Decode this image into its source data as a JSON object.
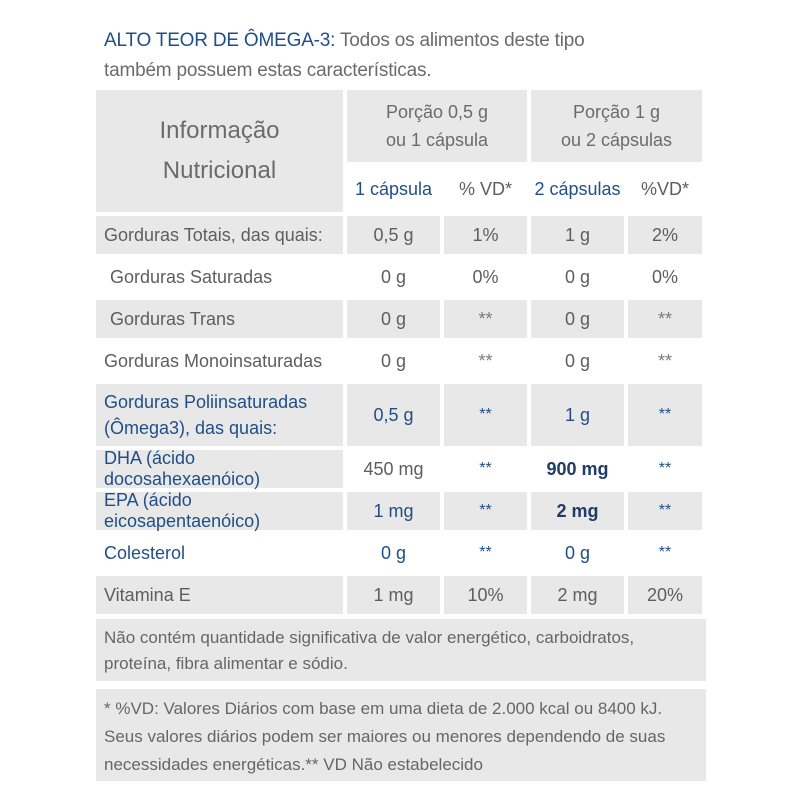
{
  "intro": {
    "highlight": "ALTO TEOR DE ÔMEGA-3:",
    "line1_rest": " Todos os alimentos deste tipo",
    "line2": "também possuem estas características."
  },
  "header": {
    "info_line1": "Informação",
    "info_line2": "Nutricional",
    "portion1_line1": "Porção 0,5 g",
    "portion1_line2": "ou 1 cápsula",
    "portion2_line1": "Porção  1 g",
    "portion2_line2": "ou 2 cápsulas",
    "sub1": "1 cápsula",
    "sub2": "% VD*",
    "sub3": "2 cápsulas",
    "sub4": "%VD*"
  },
  "rows": [
    {
      "label": "Gorduras Totais, das quais:",
      "v1": "0,5 g",
      "vd1": "1%",
      "v2": "1 g",
      "vd2": "2%"
    },
    {
      "label": " Gorduras Saturadas",
      "v1": "0 g",
      "vd1": "0%",
      "v2": "0 g",
      "vd2": "0%"
    },
    {
      "label": " Gorduras Trans",
      "v1": "0 g",
      "vd1": "**",
      "v2": "0 g",
      "vd2": "**"
    },
    {
      "label": "Gorduras Monoinsaturadas",
      "v1": "0 g",
      "vd1": "**",
      "v2": "0 g",
      "vd2": "**"
    },
    {
      "label_line1": "Gorduras Poliinsaturadas",
      "label_line2": "(Ômega3), das quais:",
      "v1": "0,5 g",
      "vd1": "**",
      "v2": "1 g",
      "vd2": "**"
    },
    {
      "label": "DHA (ácido docosahexaenóico)",
      "v1": "450 mg",
      "vd1": "**",
      "v2": "900 mg",
      "vd2": "**"
    },
    {
      "label": "EPA (ácido eicosapentaenóico)",
      "v1": "1 mg",
      "vd1": "**",
      "v2": "2 mg",
      "vd2": "**"
    },
    {
      "label": "Colesterol",
      "v1": "0 g",
      "vd1": "**",
      "v2": "0 g",
      "vd2": "**"
    },
    {
      "label": "Vitamina E",
      "v1": "1 mg",
      "vd1": "10%",
      "v2": "2 mg",
      "vd2": "20%"
    }
  ],
  "notes": {
    "note1_line1": "Não contém quantidade significativa de valor energético, carboidratos,",
    "note1_line2": "proteína, fibra alimentar e sódio.",
    "note2_line1": "* %VD: Valores Diários com base em uma dieta de 2.000 kcal ou 8400 kJ.",
    "note2_line2": "Seus valores diários podem ser maiores ou menores dependendo de suas",
    "note2_line3": "necessidades energéticas.** VD Não estabelecido"
  },
  "colors": {
    "accent": "#1f4f86",
    "shade": "#e8e8e8",
    "text": "#5e5e5e"
  }
}
